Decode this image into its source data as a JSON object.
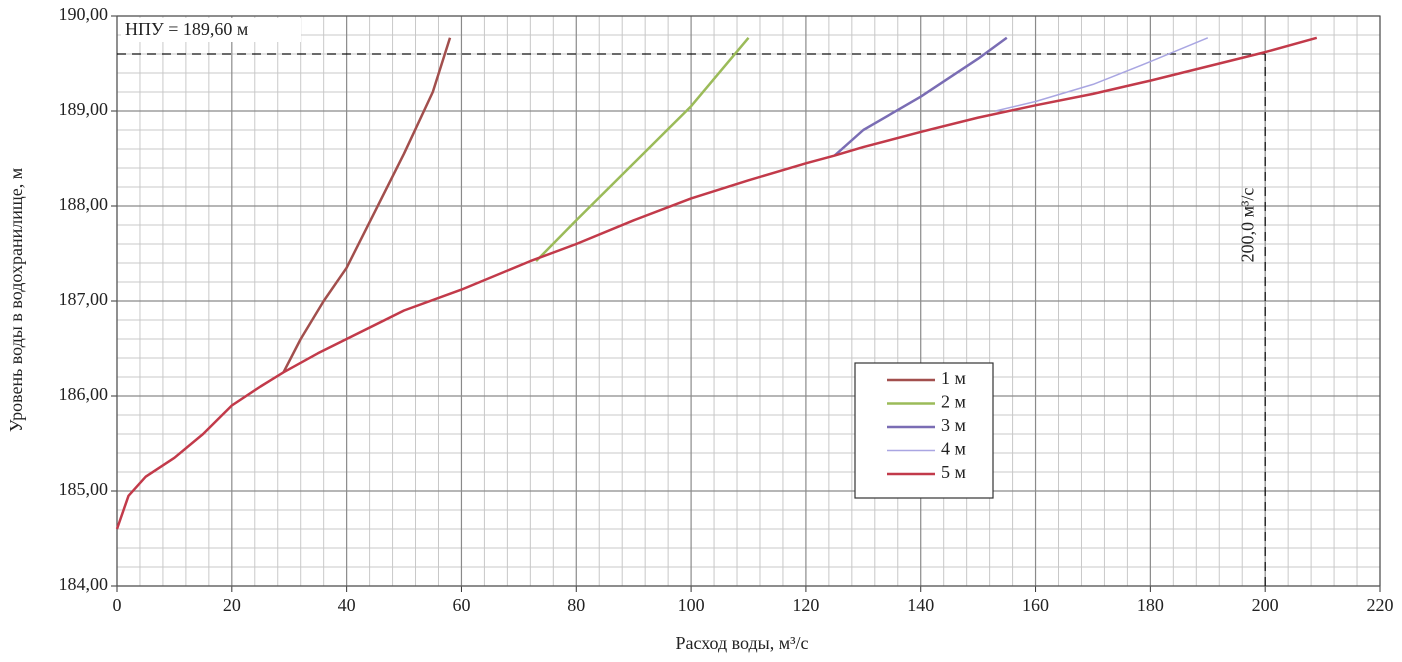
{
  "chart_data": {
    "type": "line",
    "x_label": "Расход воды, м³/с",
    "y_label": "Уровень воды в водохранилище, м",
    "xlim": [
      0,
      220
    ],
    "xticks": [
      0,
      20,
      40,
      60,
      80,
      100,
      120,
      140,
      160,
      180,
      200,
      220
    ],
    "ylim": [
      184,
      190
    ],
    "yticks": [
      {
        "value": 184,
        "label": "184,00"
      },
      {
        "value": 185,
        "label": "185,00"
      },
      {
        "value": 186,
        "label": "186,00"
      },
      {
        "value": 187,
        "label": "187,00"
      },
      {
        "value": 188,
        "label": "188,00"
      },
      {
        "value": 189,
        "label": "189,00"
      },
      {
        "value": 190,
        "label": "190,00"
      }
    ],
    "grid": true,
    "annotations": [
      {
        "text": "НПУ = 189,60 м",
        "y": 189.6
      },
      {
        "text": "200,0 м³/с",
        "x": 200
      }
    ],
    "series": [
      {
        "name": "1 м",
        "color": "#a24f4d",
        "width": 2.5,
        "x": [
          29,
          32,
          36,
          40,
          45,
          50,
          55,
          58
        ],
        "values": [
          186.25,
          186.6,
          187.0,
          187.35,
          187.95,
          188.55,
          189.2,
          189.77
        ]
      },
      {
        "name": "2 м",
        "color": "#9bbb59",
        "width": 2.5,
        "x": [
          73,
          80,
          90,
          100,
          110
        ],
        "values": [
          187.42,
          187.85,
          188.45,
          189.05,
          189.77
        ]
      },
      {
        "name": "3 м",
        "color": "#7a6db4",
        "width": 2.5,
        "x": [
          125,
          130,
          140,
          150,
          155
        ],
        "values": [
          188.53,
          188.8,
          189.15,
          189.55,
          189.77
        ]
      },
      {
        "name": "4 м",
        "color": "#a9a6e2",
        "width": 1.5,
        "x": [
          153,
          160,
          170,
          180,
          190
        ],
        "values": [
          189.0,
          189.1,
          189.28,
          189.52,
          189.77
        ]
      },
      {
        "name": "5 м",
        "color": "#c23a4a",
        "width": 2.5,
        "x": [
          0,
          2,
          5,
          10,
          15,
          20,
          25,
          29,
          35,
          40,
          50,
          60,
          72,
          80,
          90,
          100,
          110,
          120,
          125,
          130,
          140,
          150,
          160,
          170,
          180,
          190,
          200,
          209
        ],
        "values": [
          184.6,
          184.95,
          185.15,
          185.35,
          185.6,
          185.9,
          186.1,
          186.25,
          186.45,
          186.6,
          186.9,
          187.12,
          187.42,
          187.6,
          187.85,
          188.08,
          188.27,
          188.45,
          188.53,
          188.62,
          188.78,
          188.93,
          189.06,
          189.18,
          189.32,
          189.47,
          189.62,
          189.77
        ]
      }
    ]
  }
}
